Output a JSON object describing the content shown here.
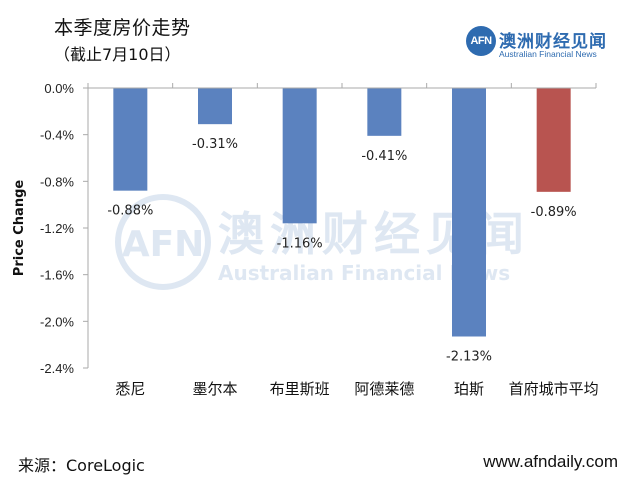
{
  "header": {
    "title": "本季度房价走势",
    "subtitle": "（截止7月10日）"
  },
  "brand": {
    "badge": "AFN",
    "name": "澳洲财经见闻",
    "tagline": "Australian Financial News"
  },
  "watermark": {
    "badge": "AFN",
    "name": "澳洲财经见闻",
    "tagline": "Australian Financial News"
  },
  "footer": {
    "source": "来源：CoreLogic",
    "site": "www.afndaily.com"
  },
  "colors": {
    "bar_default": "#5b82bf",
    "bar_highlight": "#b85450",
    "axis": "#aaaaaa",
    "brand": "#2e6bb0",
    "watermark": "#dbe5f1"
  },
  "chart_data": {
    "type": "bar",
    "title": "本季度房价走势",
    "subtitle": "（截止7月10日）",
    "xlabel": "",
    "ylabel": "Price Change",
    "ylim": [
      -2.4,
      0
    ],
    "yticks": [
      0,
      -0.4,
      -0.8,
      -1.2,
      -1.6,
      -2.0,
      -2.4
    ],
    "ytick_labels": [
      "0.0%",
      "-0.4%",
      "-0.8%",
      "-1.2%",
      "-1.6%",
      "-2.0%",
      "-2.4%"
    ],
    "grid": false,
    "legend": "none",
    "categories": [
      "悉尼",
      "墨尔本",
      "布里斯班",
      "阿德莱德",
      "珀斯",
      "首府城市平均"
    ],
    "values": [
      -0.88,
      -0.31,
      -1.16,
      -0.41,
      -2.13,
      -0.89
    ],
    "data_labels": [
      "-0.88%",
      "-0.31%",
      "-1.16%",
      "-0.41%",
      "-2.13%",
      "-0.89%"
    ],
    "highlight_category": "首府城市平均"
  }
}
